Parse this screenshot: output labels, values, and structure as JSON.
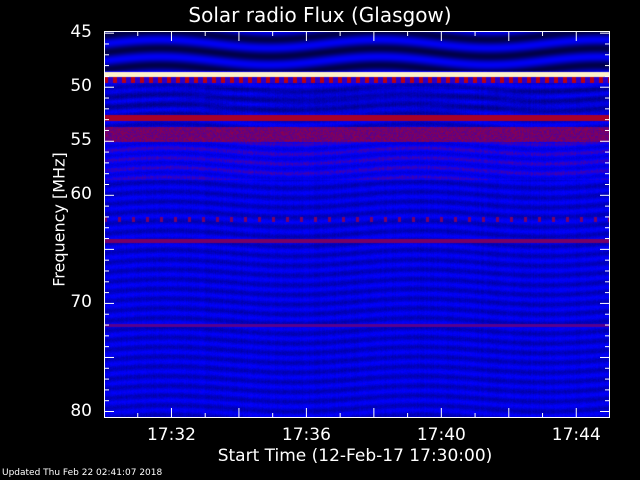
{
  "chart_data": {
    "type": "heatmap",
    "title": "Solar radio Flux (Glasgow)",
    "xlabel": "Start Time (12-Feb-17 17:30:00)",
    "ylabel": "Frequency [MHz]",
    "xlim": [
      "17:30",
      "17:45"
    ],
    "ylim": [
      80.6,
      44.8
    ],
    "xticks": [
      "17:32",
      "17:36",
      "17:40",
      "17:44"
    ],
    "yticks": [
      "45",
      "50",
      "55",
      "60",
      "70",
      "80"
    ],
    "colormap": [
      "#000000",
      "#0000ff",
      "#ff0000",
      "#ffff00",
      "#ffffff"
    ],
    "intense_bands_mhz": [
      48.8,
      52.8,
      54.2,
      64.2,
      72.0
    ]
  },
  "footer": {
    "updated": "Updated Thu Feb 22 02:41:07 2018"
  }
}
